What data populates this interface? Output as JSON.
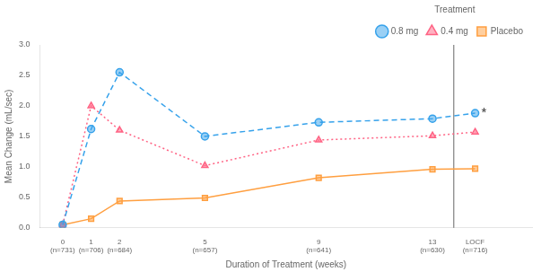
{
  "chart_data": {
    "type": "line",
    "legend_title": "Treatment",
    "xlabel": "Duration of Treatment (weeks)",
    "ylabel": "Mean Change (mL/sec)",
    "x": [
      0,
      1,
      2,
      5,
      9,
      13,
      14.5
    ],
    "series": [
      {
        "name": "0.8 mg",
        "values": [
          0.05,
          1.62,
          2.55,
          1.5,
          1.73,
          1.79,
          1.88
        ],
        "marker": "circle",
        "line_style": "dashed"
      },
      {
        "name": "0.4 mg",
        "values": [
          0.05,
          2.0,
          1.6,
          1.02,
          1.44,
          1.51,
          1.57
        ],
        "marker": "triangle",
        "line_style": "dotted"
      },
      {
        "name": "Placebo",
        "values": [
          0.05,
          0.15,
          0.44,
          0.49,
          0.82,
          0.96,
          0.97
        ],
        "marker": "square",
        "line_style": "solid"
      }
    ],
    "xlim": [
      -0.8,
      16.5
    ],
    "xticks": [
      {
        "value": 0,
        "label": "0\n(n=731)"
      },
      {
        "value": 1,
        "label": "1\n(n=706)"
      },
      {
        "value": 2,
        "label": "2\n(n=684)"
      },
      {
        "value": 5,
        "label": "5\n(n=657)"
      },
      {
        "value": 9,
        "label": "9\n(n=641)"
      },
      {
        "value": 13,
        "label": "13\n(n=630)"
      },
      {
        "value": 14.5,
        "label": "LOCF\n(n=716)"
      }
    ],
    "ylim": [
      0.0,
      3.0
    ],
    "yticks": [
      {
        "value": 0,
        "label": "0.0"
      },
      0.5,
      {
        "value": 1,
        "label": "1.0"
      },
      1.5,
      {
        "value": 2,
        "label": "2.0"
      },
      2.5,
      {
        "value": 3,
        "label": "3.0"
      }
    ],
    "annotations": [
      {
        "text": "*",
        "x": 14.5,
        "y": 1.88
      }
    ],
    "legend": "upper right",
    "grid": false
  }
}
